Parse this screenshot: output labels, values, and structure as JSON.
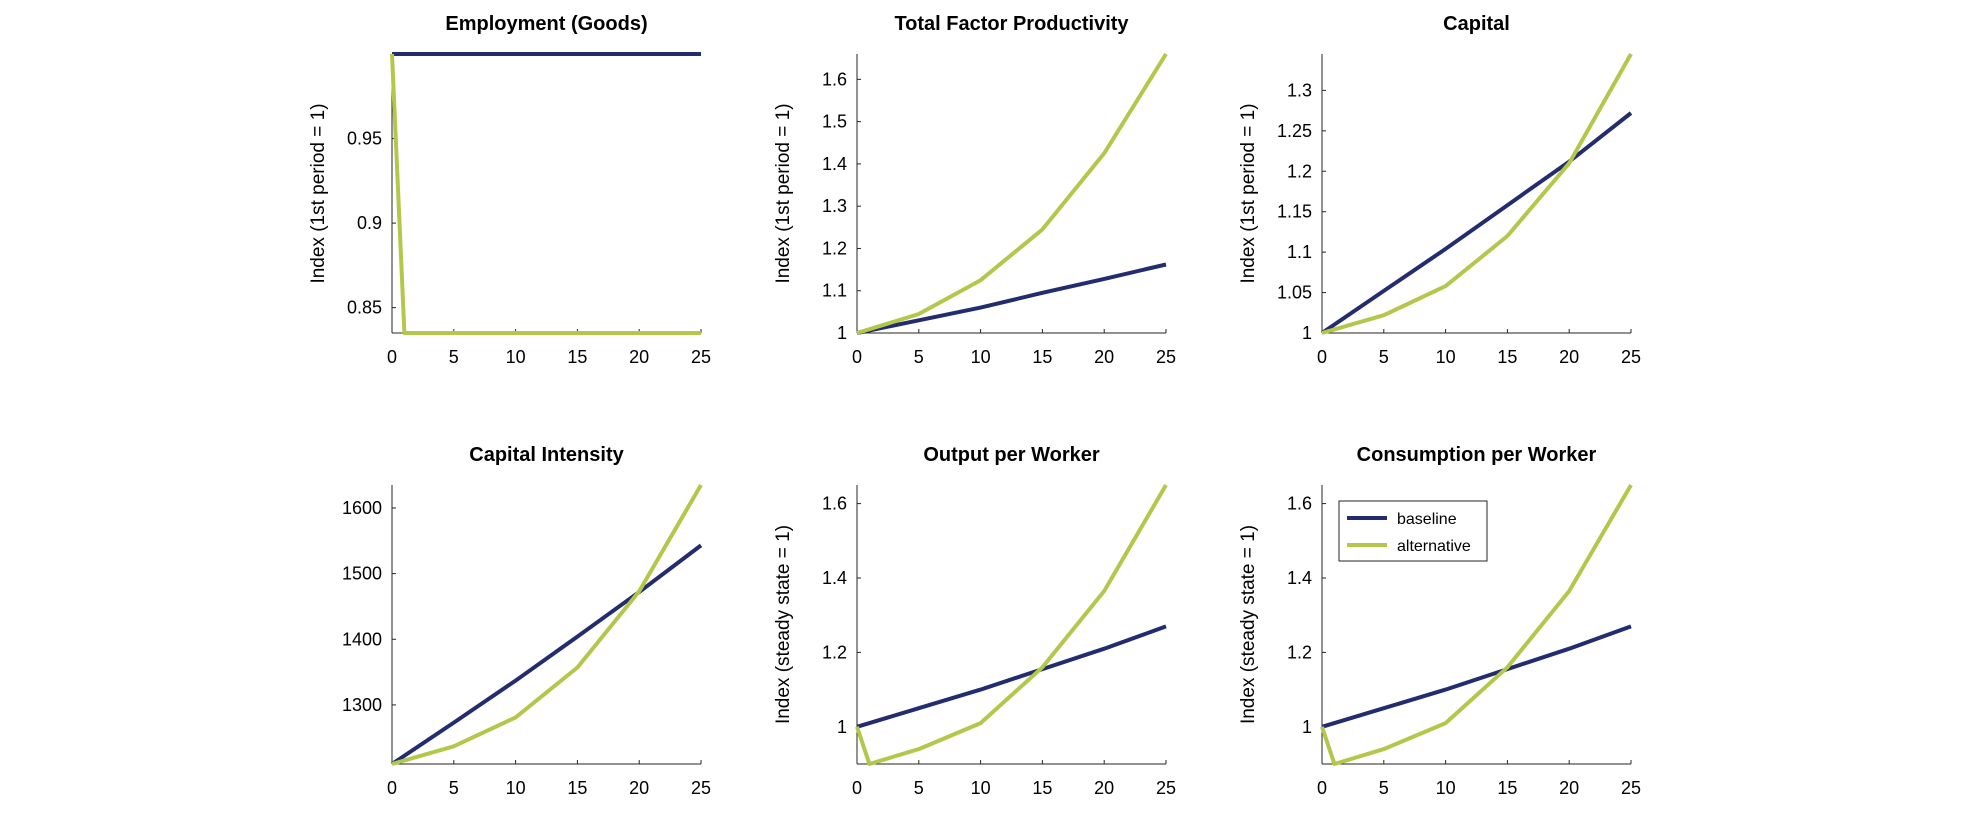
{
  "colors": {
    "baseline": "#222c6e",
    "alternative": "#b2c84a"
  },
  "chart_data": [
    {
      "type": "line",
      "title": "Employment (Goods)",
      "ylabel": "",
      "ylabel_outer": "Index (1st period = 1)",
      "xlim": [
        0,
        25
      ],
      "ylim": [
        0.835,
        1.0
      ],
      "xticks": [
        0,
        5,
        10,
        15,
        20,
        25
      ],
      "yticks": [
        0.85,
        0.9,
        0.95
      ],
      "ytick_labels": [
        "0.85",
        "0.9",
        "0.95"
      ],
      "series": [
        {
          "name": "baseline",
          "x": [
            0,
            25
          ],
          "y": [
            1.0,
            1.0
          ]
        },
        {
          "name": "alternative",
          "x": [
            0,
            1,
            25
          ],
          "y": [
            1.0,
            0.835,
            0.835
          ]
        }
      ]
    },
    {
      "type": "line",
      "title": "Total Factor Productivity",
      "ylabel_outer": "Index (1st period = 1)",
      "xlim": [
        0,
        25
      ],
      "ylim": [
        1.0,
        1.66
      ],
      "xticks": [
        0,
        5,
        10,
        15,
        20,
        25
      ],
      "yticks": [
        1,
        1.1,
        1.2,
        1.3,
        1.4,
        1.5,
        1.6
      ],
      "ytick_labels": [
        "1",
        "1.1",
        "1.2",
        "1.3",
        "1.4",
        "1.5",
        "1.6"
      ],
      "series": [
        {
          "name": "baseline",
          "x": [
            0,
            5,
            10,
            15,
            20,
            25
          ],
          "y": [
            1.0,
            1.03,
            1.06,
            1.095,
            1.128,
            1.162
          ]
        },
        {
          "name": "alternative",
          "x": [
            0,
            5,
            10,
            15,
            20,
            25
          ],
          "y": [
            1.0,
            1.045,
            1.125,
            1.245,
            1.425,
            1.66
          ]
        }
      ]
    },
    {
      "type": "line",
      "title": "Capital",
      "ylabel_outer": "Index (1st period = 1)",
      "xlim": [
        0,
        25
      ],
      "ylim": [
        1.0,
        1.345
      ],
      "xticks": [
        0,
        5,
        10,
        15,
        20,
        25
      ],
      "yticks": [
        1,
        1.05,
        1.1,
        1.15,
        1.2,
        1.25,
        1.3
      ],
      "ytick_labels": [
        "1",
        "1.05",
        "1.1",
        "1.15",
        "1.2",
        "1.25",
        "1.3"
      ],
      "series": [
        {
          "name": "baseline",
          "x": [
            0,
            5,
            10,
            15,
            20,
            25
          ],
          "y": [
            1.0,
            1.052,
            1.104,
            1.158,
            1.212,
            1.272
          ]
        },
        {
          "name": "alternative",
          "x": [
            0,
            5,
            10,
            15,
            20,
            25
          ],
          "y": [
            1.0,
            1.022,
            1.058,
            1.12,
            1.21,
            1.345
          ]
        }
      ]
    },
    {
      "type": "line",
      "title": "Capital Intensity",
      "ylabel_outer": "",
      "xlim": [
        0,
        25
      ],
      "ylim": [
        1210,
        1635
      ],
      "xticks": [
        0,
        5,
        10,
        15,
        20,
        25
      ],
      "yticks": [
        1300,
        1400,
        1500,
        1600
      ],
      "ytick_labels": [
        "1300",
        "1400",
        "1500",
        "1600"
      ],
      "series": [
        {
          "name": "baseline",
          "x": [
            0,
            5,
            10,
            15,
            20,
            25
          ],
          "y": [
            1210,
            1273,
            1337,
            1404,
            1472,
            1543
          ]
        },
        {
          "name": "alternative",
          "x": [
            0,
            5,
            10,
            15,
            20,
            25
          ],
          "y": [
            1210,
            1237,
            1281,
            1357,
            1473,
            1635
          ]
        }
      ]
    },
    {
      "type": "line",
      "title": "Output per Worker",
      "ylabel_outer": "Index (steady state = 1)",
      "xlim": [
        0,
        25
      ],
      "ylim": [
        0.9,
        1.65
      ],
      "xticks": [
        0,
        5,
        10,
        15,
        20,
        25
      ],
      "yticks": [
        1,
        1.2,
        1.4,
        1.6
      ],
      "ytick_labels": [
        "1",
        "1.2",
        "1.4",
        "1.6"
      ],
      "series": [
        {
          "name": "baseline",
          "x": [
            0,
            5,
            10,
            15,
            20,
            25
          ],
          "y": [
            1.0,
            1.05,
            1.1,
            1.155,
            1.21,
            1.27
          ]
        },
        {
          "name": "alternative",
          "x": [
            0,
            1,
            5,
            10,
            15,
            20,
            25
          ],
          "y": [
            1.0,
            0.9,
            0.94,
            1.01,
            1.16,
            1.365,
            1.65
          ]
        }
      ]
    },
    {
      "type": "line",
      "title": "Consumption per Worker",
      "ylabel_outer": "Index (steady state = 1)",
      "xlim": [
        0,
        25
      ],
      "ylim": [
        0.9,
        1.65
      ],
      "xticks": [
        0,
        5,
        10,
        15,
        20,
        25
      ],
      "yticks": [
        1,
        1.2,
        1.4,
        1.6
      ],
      "ytick_labels": [
        "1",
        "1.2",
        "1.4",
        "1.6"
      ],
      "legend": {
        "position": "top-left",
        "entries": [
          "baseline",
          "alternative"
        ]
      },
      "series": [
        {
          "name": "baseline",
          "x": [
            0,
            5,
            10,
            15,
            20,
            25
          ],
          "y": [
            1.0,
            1.05,
            1.1,
            1.155,
            1.21,
            1.27
          ]
        },
        {
          "name": "alternative",
          "x": [
            0,
            1,
            5,
            10,
            15,
            20,
            25
          ],
          "y": [
            1.0,
            0.9,
            0.94,
            1.01,
            1.16,
            1.365,
            1.65
          ]
        }
      ]
    }
  ]
}
